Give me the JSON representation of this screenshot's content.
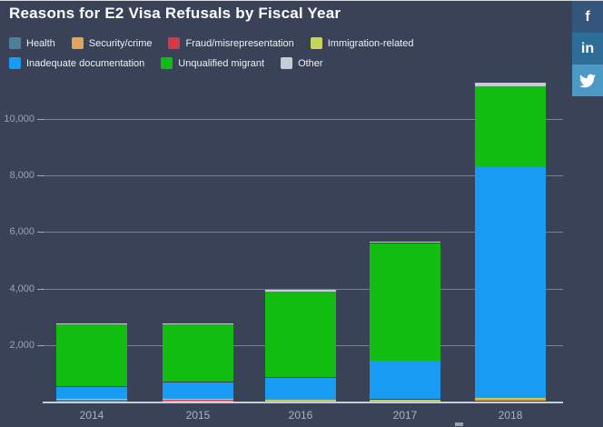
{
  "title": "Reasons for E2 Visa Refusals by Fiscal Year",
  "colors": {
    "background": "#3a4258",
    "axis_line": "#c9cdd5",
    "grid_line": "rgba(255,255,255,0.33)",
    "tick_label": "#9aa3b5"
  },
  "social": {
    "facebook": {
      "label": "f",
      "color": "#35567c"
    },
    "linkedin": {
      "label": "in",
      "color": "#2e6d98"
    },
    "twitter": {
      "icon": "twitter-bird-icon",
      "color": "#4d99c6"
    }
  },
  "chart_data": {
    "type": "bar",
    "stacked": true,
    "title": "Reasons for E2 Visa Refusals by Fiscal Year",
    "xlabel": "",
    "ylabel": "",
    "categories": [
      "2014",
      "2015",
      "2016",
      "2017",
      "2018"
    ],
    "series": [
      {
        "name": "Health",
        "color": "#4e7f96",
        "values": [
          70,
          15,
          10,
          10,
          15
        ]
      },
      {
        "name": "Security/crime",
        "color": "#dfa558",
        "values": [
          15,
          60,
          55,
          60,
          110
        ]
      },
      {
        "name": "Fraud/misrepresentation",
        "color": "#d4394a",
        "values": [
          5,
          5,
          5,
          5,
          10
        ]
      },
      {
        "name": "Immigration-related",
        "color": "#c7d35f",
        "values": [
          5,
          5,
          5,
          5,
          10
        ]
      },
      {
        "name": "Inadequate documentation",
        "color": "#189bf2",
        "values": [
          435,
          605,
          775,
          1380,
          8150
        ]
      },
      {
        "name": "Unqualified migrant",
        "color": "#12bd12",
        "values": [
          2205,
          2055,
          3030,
          4150,
          2850
        ]
      },
      {
        "name": "Other",
        "color": "#c7ccd4",
        "values": [
          25,
          15,
          70,
          40,
          130
        ]
      }
    ],
    "totals": [
      2760,
      2760,
      3950,
      5650,
      11275
    ],
    "yticks": [
      {
        "value": 2000,
        "label": "2,000"
      },
      {
        "value": 4000,
        "label": "4,000"
      },
      {
        "value": 6000,
        "label": "6,000"
      },
      {
        "value": 8000,
        "label": "8,000"
      },
      {
        "value": 10000,
        "label": "10,000"
      }
    ],
    "ylim": [
      0,
      11500
    ],
    "grid": true,
    "legend_position": "top"
  }
}
